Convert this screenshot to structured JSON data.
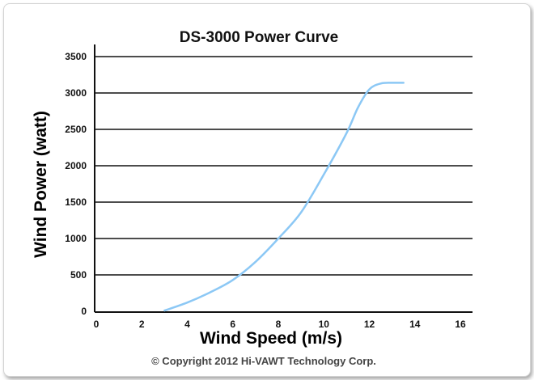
{
  "chart_data": {
    "type": "line",
    "title": "DS-3000 Power Curve",
    "xlabel": "Wind Speed (m/s)",
    "ylabel": "Wind Power (watt)",
    "xlim": [
      0,
      16
    ],
    "ylim": [
      0,
      3500
    ],
    "xticks": [
      "0",
      "2",
      "4",
      "6",
      "8",
      "10",
      "12",
      "14",
      "16"
    ],
    "yticks": [
      "0",
      "500",
      "1000",
      "1500",
      "2000",
      "2500",
      "3000",
      "3500"
    ],
    "grid": "horizontal",
    "line_color": "#8cc8f5",
    "series": [
      {
        "x": [
          3.0,
          4.0,
          5.0,
          6.0,
          7.0,
          8.0,
          9.0,
          10.0,
          11.0,
          11.5,
          12.0,
          12.5,
          13.0,
          13.5
        ],
        "values": [
          10,
          120,
          260,
          430,
          680,
          1000,
          1360,
          1880,
          2450,
          2800,
          3050,
          3130,
          3140,
          3140
        ]
      }
    ]
  },
  "copyright": "© Copyright 2012 Hi-VAWT Technology Corp."
}
